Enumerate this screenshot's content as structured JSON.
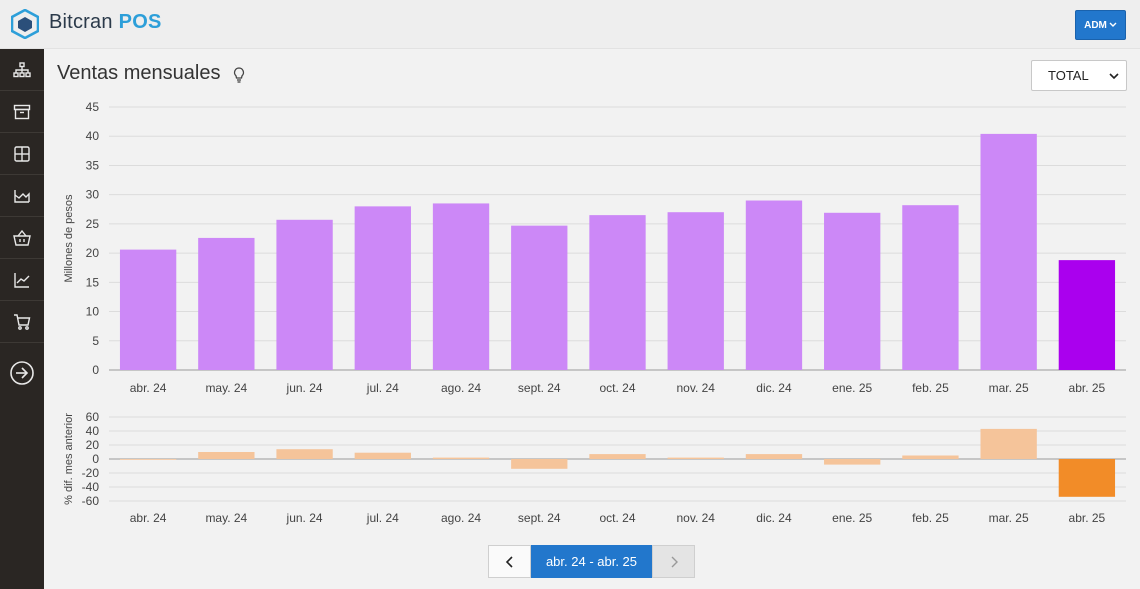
{
  "app": {
    "brand_name": "Bitcran",
    "brand_product": "POS",
    "brand_color": "#2d9fd9"
  },
  "header": {
    "user_button_label": "ADM",
    "user_button_color": "#2277cc"
  },
  "sidebar": {
    "items": [
      {
        "icon": "sitemap-icon"
      },
      {
        "icon": "archive-box-icon"
      },
      {
        "icon": "grid-icon"
      },
      {
        "icon": "factory-icon"
      },
      {
        "icon": "basket-icon"
      },
      {
        "icon": "line-chart-icon"
      },
      {
        "icon": "shopping-cart-icon"
      },
      {
        "icon": "arrow-right-circle-icon"
      }
    ]
  },
  "main": {
    "title": "Ventas mensuales",
    "title_icon": "lightbulb-icon",
    "filter_select": {
      "selected": "TOTAL"
    }
  },
  "pagination": {
    "prev_icon": "chevron-left-icon",
    "current_label": "abr. 24 - abr. 25",
    "next_icon": "chevron-right-icon",
    "next_disabled": true
  },
  "chart_data": [
    {
      "type": "bar",
      "ylabel": "Millones de pesos",
      "categories": [
        "abr. 24",
        "may. 24",
        "jun. 24",
        "jul. 24",
        "ago. 24",
        "sept. 24",
        "oct. 24",
        "nov. 24",
        "dic. 24",
        "ene. 25",
        "feb. 25",
        "mar. 25",
        "abr. 25"
      ],
      "values": [
        20.6,
        22.6,
        25.7,
        28.0,
        28.5,
        24.7,
        26.5,
        27.0,
        29.0,
        26.9,
        28.2,
        40.4,
        18.8
      ],
      "ylim": [
        0,
        45
      ],
      "yticks": [
        0,
        5,
        10,
        15,
        20,
        25,
        30,
        35,
        40,
        45
      ],
      "grid": true,
      "color": "#cc88f7",
      "highlight_color": "#aa00ee",
      "highlight_index": 12
    },
    {
      "type": "bar",
      "ylabel": "% dif. mes anterior",
      "categories": [
        "abr. 24",
        "may. 24",
        "jun. 24",
        "jul. 24",
        "ago. 24",
        "sept. 24",
        "oct. 24",
        "nov. 24",
        "dic. 24",
        "ene. 25",
        "feb. 25",
        "mar. 25",
        "abr. 25"
      ],
      "values": [
        0,
        10,
        14,
        9,
        2,
        -14,
        7,
        2,
        7,
        -8,
        5,
        43,
        -54
      ],
      "ylim": [
        -60,
        60
      ],
      "yticks": [
        -60,
        -40,
        -20,
        0,
        20,
        40,
        60
      ],
      "grid": true,
      "color": "#f5c49a",
      "highlight_color": "#f28c28",
      "highlight_index": 12
    }
  ]
}
